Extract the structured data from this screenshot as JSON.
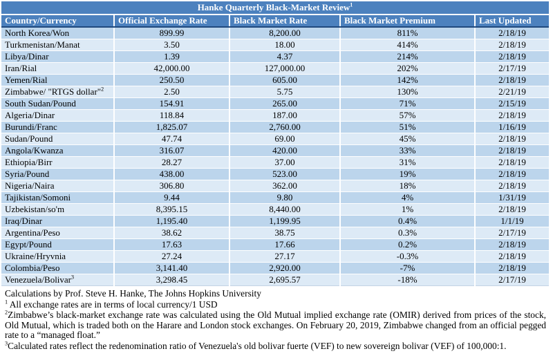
{
  "colors": {
    "header_blue": "#4C81BE",
    "band_dark": "#BCD5EC",
    "band_light": "#DDEAF6",
    "dark_border": "#1F497D",
    "header_text": "#FFFFFF",
    "body_text": "#000000"
  },
  "table": {
    "title": "Hanke Quarterly Black-Market Review",
    "title_sup": "1",
    "columns": [
      "Country/Currency",
      "Official Exchange Rate",
      "Black Market Rate",
      "Black Market Premium",
      "Last Updated"
    ],
    "rows": [
      {
        "country": "North Korea/Won",
        "sup": "",
        "official": "899.99",
        "black_market": "8,200.00",
        "premium": "811%",
        "updated": "2/18/19"
      },
      {
        "country": "Turkmenistan/Manat",
        "sup": "",
        "official": "3.50",
        "black_market": "18.00",
        "premium": "414%",
        "updated": "2/18/19"
      },
      {
        "country": "Libya/Dinar",
        "sup": "",
        "official": "1.39",
        "black_market": "4.37",
        "premium": "214%",
        "updated": "2/18/19"
      },
      {
        "country": "Iran/Rial",
        "sup": "",
        "official": "42,000.00",
        "black_market": "127,000.00",
        "premium": "202%",
        "updated": "2/17/19"
      },
      {
        "country": "Yemen/Rial",
        "sup": "",
        "official": "250.50",
        "black_market": "605.00",
        "premium": "142%",
        "updated": "2/18/19"
      },
      {
        "country": "Zimbabwe/ \"RTGS dollar\"",
        "sup": "2",
        "official": "2.50",
        "black_market": "5.75",
        "premium": "130%",
        "updated": "2/21/19"
      },
      {
        "country": "South Sudan/Pound",
        "sup": "",
        "official": "154.91",
        "black_market": "265.00",
        "premium": "71%",
        "updated": "2/15/19"
      },
      {
        "country": "Algeria/Dinar",
        "sup": "",
        "official": "118.84",
        "black_market": "187.00",
        "premium": "57%",
        "updated": "2/18/19"
      },
      {
        "country": "Burundi/Franc",
        "sup": "",
        "official": "1,825.07",
        "black_market": "2,760.00",
        "premium": "51%",
        "updated": "1/16/19"
      },
      {
        "country": "Sudan/Pound",
        "sup": "",
        "official": "47.74",
        "black_market": "69.00",
        "premium": "45%",
        "updated": "2/18/19"
      },
      {
        "country": "Angola/Kwanza",
        "sup": "",
        "official": "316.07",
        "black_market": "420.00",
        "premium": "33%",
        "updated": "2/18/19"
      },
      {
        "country": "Ethiopia/Birr",
        "sup": "",
        "official": "28.27",
        "black_market": "37.00",
        "premium": "31%",
        "updated": "2/18/19"
      },
      {
        "country": "Syria/Pound",
        "sup": "",
        "official": "438.00",
        "black_market": "523.00",
        "premium": "19%",
        "updated": "2/18/19"
      },
      {
        "country": "Nigeria/Naira",
        "sup": "",
        "official": "306.80",
        "black_market": "362.00",
        "premium": "18%",
        "updated": "2/18/19"
      },
      {
        "country": "Tajikistan/Somoni",
        "sup": "",
        "official": "9.44",
        "black_market": "9.80",
        "premium": "4%",
        "updated": "1/31/19"
      },
      {
        "country": "Uzbekistan/so'm",
        "sup": "",
        "official": "8,395.15",
        "black_market": "8,440.00",
        "premium": "1%",
        "updated": "2/18/19"
      },
      {
        "country": "Iraq/Dinar",
        "sup": "",
        "official": "1,195.40",
        "black_market": "1,199.95",
        "premium": "0.4%",
        "updated": "1/1/19"
      },
      {
        "country": "Argentina/Peso",
        "sup": "",
        "official": "38.62",
        "black_market": "38.75",
        "premium": "0.3%",
        "updated": "2/17/19"
      },
      {
        "country": "Egypt/Pound",
        "sup": "",
        "official": "17.63",
        "black_market": "17.66",
        "premium": "0.2%",
        "updated": "2/18/19"
      },
      {
        "country": "Ukraine/Hryvnia",
        "sup": "",
        "official": "27.24",
        "black_market": "27.17",
        "premium": "-0.3%",
        "updated": "2/18/19"
      },
      {
        "country": "Colombia/Peso",
        "sup": "",
        "official": "3,141.40",
        "black_market": "2,920.00",
        "premium": "-7%",
        "updated": "2/18/19"
      },
      {
        "country": "Venezuela/Bolivar",
        "sup": "3",
        "official": "3,298.45",
        "black_market": "2,695.57",
        "premium": "-18%",
        "updated": "2/17/19"
      }
    ]
  },
  "footer": {
    "credit": "Calculations by Prof. Steve H. Hanke, The Johns Hopkins University",
    "note1_sup": "1",
    "note1_text": " All exchange rates are in terms of local currency/1 USD",
    "note2_sup": "2",
    "note2_text": "Zimbabwe’s black-market exchange rate was calculated using the Old Mutual implied exchange rate (OMIR) derived from prices of the stock, Old Mutual, which is traded both on the Harare and London stock exchanges. On February 20, 2019, Zimbabwe changed from an official pegged rate to a “managed float.”",
    "note3_sup": "3",
    "note3_text": "Calculated rates reflect the redenomination ratio of Venezuela's old bolivar fuerte (VEF) to new sovereign bolivar (VEF) of 100,000:1."
  }
}
